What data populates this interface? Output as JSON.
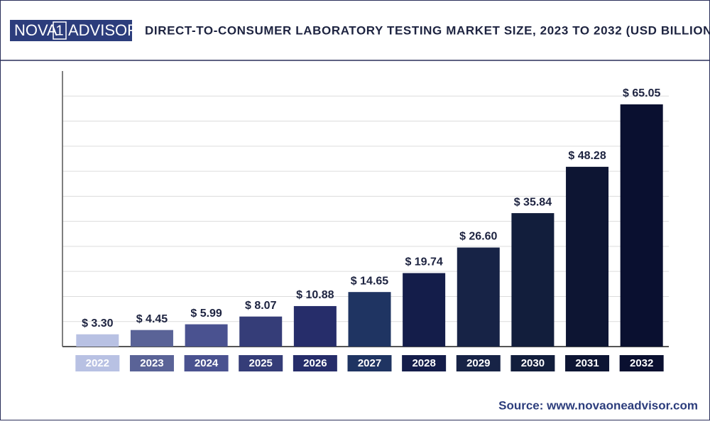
{
  "logo": {
    "left": "NOVA",
    "middle": "1",
    "right": "ADVISOR"
  },
  "source": "Source: www.novaoneadvisor.com",
  "chart_data": {
    "type": "bar",
    "title": "DIRECT-TO-CONSUMER LABORATORY TESTING MARKET SIZE, 2023 TO 2032 (USD BILLION)",
    "categories": [
      "2022",
      "2023",
      "2024",
      "2025",
      "2026",
      "2027",
      "2028",
      "2029",
      "2030",
      "2031",
      "2032"
    ],
    "values": [
      3.3,
      4.45,
      5.99,
      8.07,
      10.88,
      14.65,
      19.74,
      26.6,
      35.84,
      48.28,
      65.05
    ],
    "value_labels": [
      "$ 3.30",
      "$ 4.45",
      "$ 5.99",
      "$ 8.07",
      "$ 10.88",
      "$ 14.65",
      "$ 19.74",
      "$ 26.60",
      "$ 35.84",
      "$ 48.28",
      "$ 65.05"
    ],
    "colors": [
      "#b8c1e3",
      "#5a6397",
      "#4a5290",
      "#353d78",
      "#262d6a",
      "#1f3462",
      "#141d4a",
      "#172346",
      "#121e3c",
      "#0d1533",
      "#0a1030"
    ],
    "ylim": [
      0,
      74
    ],
    "grid": true
  }
}
